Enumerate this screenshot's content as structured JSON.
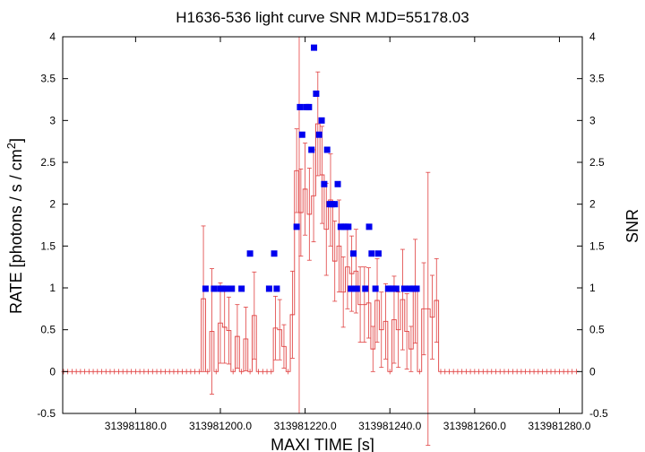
{
  "chart_data": {
    "type": "scatter",
    "title": "H1636-536 light curve  SNR MJD=55178.03",
    "xlabel": "MAXI TIME [s]",
    "ylabel_left": "RATE [photons / s / cm",
    "ylabel_left_sup": "2",
    "ylabel_left_close": "]",
    "ylabel_right": "SNR",
    "xlim": [
      313981162.8,
      313981285.4
    ],
    "ylim_left": [
      -0.5,
      4
    ],
    "ylim_right": [
      -0.5,
      4
    ],
    "x_ticks": [
      313981180.0,
      313981200.0,
      313981220.0,
      313981240.0,
      313981260.0,
      313981280.0
    ],
    "x_tick_labels": [
      "313981180.0",
      "313981200.0",
      "313981220.0",
      "313981240.0",
      "313981260.0",
      "313981280.0"
    ],
    "y_ticks_left": [
      -0.5,
      0,
      0.5,
      1,
      1.5,
      2,
      2.5,
      3,
      3.5,
      4
    ],
    "y_tick_labels_left": [
      "-0.5",
      "0",
      "0.5",
      "1",
      "1.5",
      "2",
      "2.5",
      "3",
      "3.5",
      "4"
    ],
    "y_tick_labels_right": [
      "-0.5",
      "0",
      "0.5",
      "1",
      "1.5",
      "2",
      "2.5",
      "3",
      "3.5",
      "4"
    ],
    "reference_line_x": 313981218.6,
    "colors": {
      "rate": "#e04040",
      "snr": "#0000ee",
      "reference": "#f08080",
      "axes": "#000000"
    },
    "rate_series": {
      "name": "RATE",
      "bin_width": 1,
      "x_start": 313981163.0,
      "x_end": 313981284.0,
      "nonzero_x": [
        313981196,
        313981197,
        313981198,
        313981199,
        313981200,
        313981201,
        313981202,
        313981203,
        313981204,
        313981205,
        313981206,
        313981207,
        313981208,
        313981212,
        313981213,
        313981214,
        313981215,
        313981216,
        313981217,
        313981218,
        313981219,
        313981220,
        313981221,
        313981222,
        313981223,
        313981224,
        313981225,
        313981226,
        313981227,
        313981228,
        313981229,
        313981230,
        313981231,
        313981232,
        313981233,
        313981234,
        313981235,
        313981236,
        313981237,
        313981238,
        313981239,
        313981240,
        313981241,
        313981242,
        313981243,
        313981244,
        313981245,
        313981246,
        313981247,
        313981248,
        313981249,
        313981250,
        313981251
      ],
      "nonzero_y": [
        0.87,
        0.0,
        0.48,
        0.0,
        0.58,
        0.53,
        0.49,
        0.0,
        0.42,
        0.0,
        0.39,
        0.0,
        0.67,
        0.0,
        0.52,
        0.5,
        0.3,
        0.0,
        0.68,
        2.4,
        1.9,
        2.18,
        1.88,
        2.1,
        2.96,
        2.35,
        1.7,
        2.05,
        1.32,
        1.5,
        0.95,
        1.25,
        1.17,
        1.2,
        0.8,
        0.8,
        0.82,
        0.27,
        0.85,
        0.5,
        0.6,
        0.0,
        0.62,
        0.5,
        0.86,
        0.48,
        0.27,
        0.96,
        0.0,
        0.75,
        0.75,
        0.65,
        0.85
      ],
      "nonzero_err": [
        0.87,
        0.0,
        0.75,
        0.0,
        0.48,
        0.43,
        0.4,
        0.0,
        0.38,
        0.0,
        0.38,
        0.0,
        0.52,
        0.0,
        0.38,
        0.36,
        0.26,
        0.0,
        0.52,
        0.5,
        0.52,
        0.55,
        0.55,
        0.55,
        0.62,
        0.58,
        0.55,
        0.55,
        0.48,
        0.55,
        0.42,
        0.5,
        0.45,
        0.5,
        0.45,
        0.45,
        0.42,
        0.27,
        0.5,
        0.45,
        0.45,
        0.0,
        0.52,
        0.45,
        0.6,
        0.45,
        0.27,
        0.62,
        0.0,
        0.55,
        1.63,
        0.5,
        0.5
      ]
    },
    "snr_series": {
      "name": "SNR",
      "x": [
        313981196.5,
        313981198.5,
        313981200.0,
        313981200.6,
        313981201.3,
        313981202.7,
        313981205.0,
        313981207.0,
        313981211.5,
        313981212.7,
        313981213.3,
        313981218.0,
        313981218.8,
        313981219.3,
        313981220.3,
        313981220.9,
        313981221.5,
        313981222.1,
        313981222.6,
        313981223.3,
        313981223.9,
        313981224.5,
        313981225.2,
        313981225.8,
        313981226.3,
        313981227.0,
        313981227.7,
        313981228.4,
        313981229.0,
        313981229.6,
        313981230.2,
        313981230.8,
        313981231.4,
        313981232.2,
        313981234.2,
        313981235.1,
        313981235.7,
        313981236.6,
        313981237.3,
        313981239.6,
        313981240.1,
        313981240.8,
        313981241.5,
        313981243.4,
        313981244.7,
        313981245.6,
        313981246.3
      ],
      "y": [
        0.99,
        0.99,
        0.99,
        0.99,
        0.99,
        0.99,
        0.99,
        1.41,
        0.99,
        1.41,
        0.99,
        1.73,
        3.16,
        2.83,
        3.16,
        3.16,
        2.65,
        3.87,
        3.32,
        2.83,
        3.0,
        2.24,
        2.65,
        2.0,
        2.0,
        2.0,
        2.24,
        1.73,
        1.73,
        1.73,
        1.73,
        0.99,
        1.41,
        0.99,
        0.99,
        1.73,
        1.41,
        0.99,
        1.41,
        0.99,
        0.99,
        0.99,
        0.99,
        0.99,
        0.99,
        0.99,
        0.99
      ]
    },
    "grid": false,
    "legend": "none"
  }
}
